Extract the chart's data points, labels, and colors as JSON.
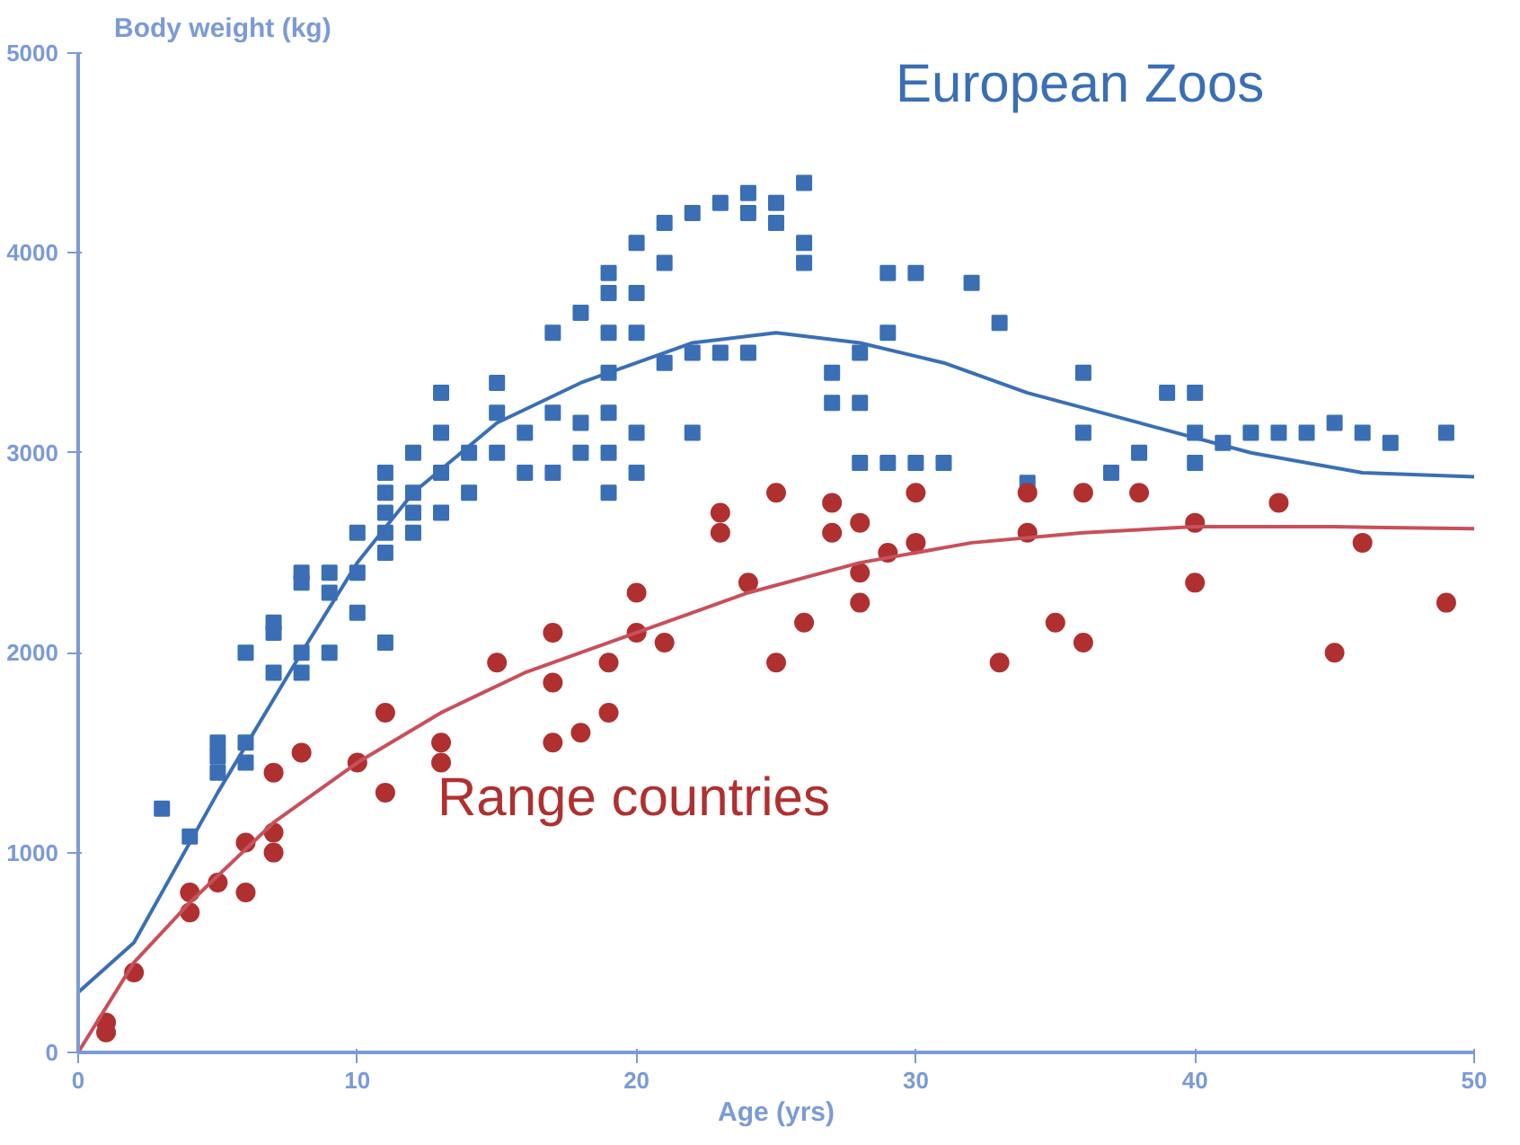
{
  "chart_data": {
    "type": "scatter",
    "ylabel": "Body weight (kg)",
    "xlabel": "Age (yrs)",
    "xlim": [
      0,
      50
    ],
    "ylim": [
      0,
      5000
    ],
    "xticks": [
      0,
      10,
      20,
      30,
      40,
      50
    ],
    "yticks": [
      0,
      1000,
      2000,
      3000,
      4000,
      5000
    ],
    "series": [
      {
        "name": "European Zoos",
        "color": "#3a6fb5",
        "marker": "square",
        "x": [
          3,
          4,
          5,
          5,
          5,
          6,
          6,
          6,
          7,
          7,
          7,
          8,
          8,
          8,
          8,
          9,
          9,
          9,
          10,
          10,
          10,
          11,
          11,
          11,
          11,
          11,
          11,
          12,
          12,
          12,
          12,
          13,
          13,
          13,
          13,
          14,
          14,
          15,
          15,
          15,
          16,
          16,
          17,
          17,
          17,
          18,
          18,
          18,
          19,
          19,
          19,
          19,
          19,
          19,
          19,
          20,
          20,
          20,
          20,
          20,
          21,
          21,
          21,
          22,
          22,
          22,
          23,
          23,
          24,
          24,
          24,
          25,
          25,
          26,
          26,
          26,
          27,
          27,
          28,
          28,
          28,
          29,
          29,
          29,
          30,
          30,
          31,
          32,
          33,
          34,
          36,
          36,
          37,
          38,
          39,
          40,
          40,
          40,
          41,
          42,
          43,
          44,
          45,
          46,
          47,
          49
        ],
        "values": [
          1220,
          1080,
          1550,
          1480,
          1400,
          1550,
          1450,
          2000,
          1900,
          2100,
          2150,
          1900,
          2000,
          2350,
          2400,
          2000,
          2300,
          2400,
          2200,
          2400,
          2600,
          2050,
          2500,
          2600,
          2700,
          2800,
          2900,
          2600,
          2700,
          2800,
          3000,
          2700,
          2900,
          3100,
          3300,
          2800,
          3000,
          3000,
          3350,
          3200,
          2900,
          3100,
          3200,
          3600,
          2900,
          3000,
          3700,
          3150,
          2800,
          3000,
          3200,
          3400,
          3600,
          3800,
          3900,
          2900,
          3100,
          3600,
          4050,
          3800,
          3450,
          3950,
          4150,
          3500,
          4200,
          3100,
          3500,
          4250,
          4300,
          3500,
          4200,
          4250,
          4150,
          4350,
          4050,
          3950,
          3250,
          3400,
          3250,
          3500,
          2950,
          3600,
          3900,
          2950,
          3900,
          2950,
          2950,
          3850,
          3650,
          2850,
          3400,
          3100,
          2900,
          3000,
          3300,
          3300,
          3100,
          2950,
          3050,
          3100,
          3100,
          3100,
          3150,
          3100,
          3050,
          3100
        ]
      },
      {
        "type": "line",
        "color": "#3a6fb5",
        "x": [
          0,
          2,
          5,
          8,
          10,
          12,
          15,
          18,
          20,
          22,
          25,
          28,
          31,
          34,
          38,
          42,
          46,
          50
        ],
        "values": [
          300,
          550,
          1300,
          2000,
          2450,
          2800,
          3150,
          3350,
          3450,
          3550,
          3600,
          3550,
          3450,
          3300,
          3150,
          3000,
          2900,
          2880
        ]
      },
      {
        "name": "Range countries",
        "color": "#b03030",
        "marker": "circle",
        "x": [
          1,
          1,
          2,
          4,
          4,
          5,
          6,
          6,
          7,
          7,
          7,
          8,
          10,
          11,
          11,
          13,
          13,
          15,
          17,
          17,
          17,
          18,
          19,
          19,
          20,
          20,
          21,
          23,
          23,
          24,
          25,
          25,
          26,
          27,
          27,
          28,
          28,
          28,
          29,
          30,
          30,
          33,
          34,
          34,
          35,
          36,
          36,
          38,
          40,
          40,
          43,
          45,
          46,
          49
        ],
        "values": [
          100,
          150,
          400,
          700,
          800,
          850,
          800,
          1050,
          1000,
          1100,
          1400,
          1500,
          1450,
          1300,
          1700,
          1550,
          1450,
          1950,
          1550,
          1850,
          2100,
          1600,
          1950,
          1700,
          2300,
          2100,
          2050,
          2600,
          2700,
          2350,
          1950,
          2800,
          2150,
          2600,
          2750,
          2250,
          2400,
          2650,
          2500,
          2550,
          2800,
          1950,
          2600,
          2800,
          2150,
          2050,
          2800,
          2800,
          2650,
          2350,
          2750,
          2000,
          2550,
          2250
        ]
      },
      {
        "type": "line",
        "color": "#c8505a",
        "x": [
          0,
          2,
          4,
          7,
          10,
          13,
          16,
          20,
          24,
          28,
          32,
          36,
          40,
          45,
          50
        ],
        "values": [
          0,
          450,
          750,
          1150,
          1450,
          1700,
          1900,
          2100,
          2300,
          2450,
          2550,
          2600,
          2630,
          2630,
          2620
        ]
      }
    ]
  }
}
